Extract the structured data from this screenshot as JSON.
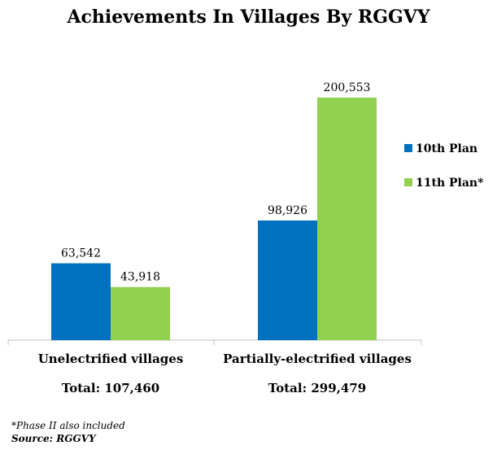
{
  "chart_data": {
    "type": "bar",
    "title": "Achievements In Villages By RGGVY",
    "categories": [
      "Unelectrified villages",
      "Partially-electrified villages"
    ],
    "totals": [
      "Total: 107,460",
      "Total: 299,479"
    ],
    "series": [
      {
        "name": "10th Plan",
        "color": "#0070c0",
        "values": [
          63542,
          98926
        ],
        "labels": [
          "63,542",
          "98,926"
        ]
      },
      {
        "name": "11th Plan*",
        "color": "#92d050",
        "values": [
          43918,
          200553
        ],
        "labels": [
          "43,918",
          "200,553"
        ]
      }
    ],
    "ylim": [
      0,
      220000
    ],
    "grid": false,
    "legend_position": "right"
  },
  "footnotes": {
    "phase": "*Phase II also included",
    "source": "Source: RGGVY"
  }
}
